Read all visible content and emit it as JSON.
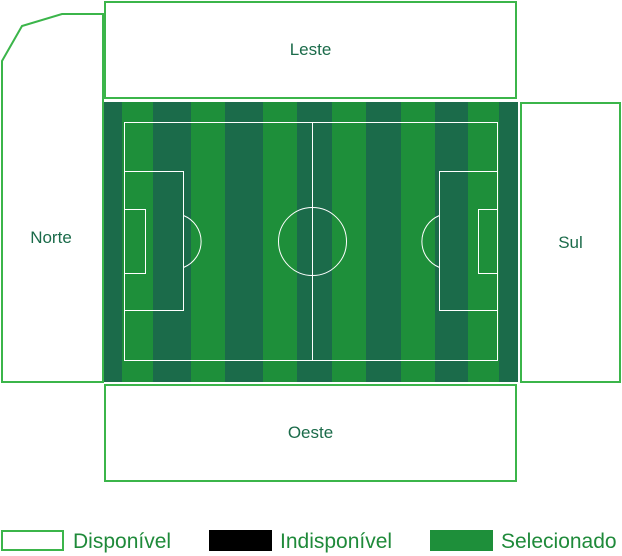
{
  "sectors": {
    "leste": "Leste",
    "oeste": "Oeste",
    "norte": "Norte",
    "sul": "Sul"
  },
  "legend": [
    {
      "label": "Disponível",
      "color": "#3bb54a",
      "style": "outline"
    },
    {
      "label": "Indisponível",
      "color": "#000000",
      "style": "filled"
    },
    {
      "label": "Selecionado",
      "color": "#1e8f3a",
      "style": "filled"
    }
  ],
  "colors": {
    "border": "#3bb54a",
    "pitch_dark": "#1b6b4a",
    "pitch_light": "#1e8f3a",
    "text": "#1b6b4a"
  }
}
